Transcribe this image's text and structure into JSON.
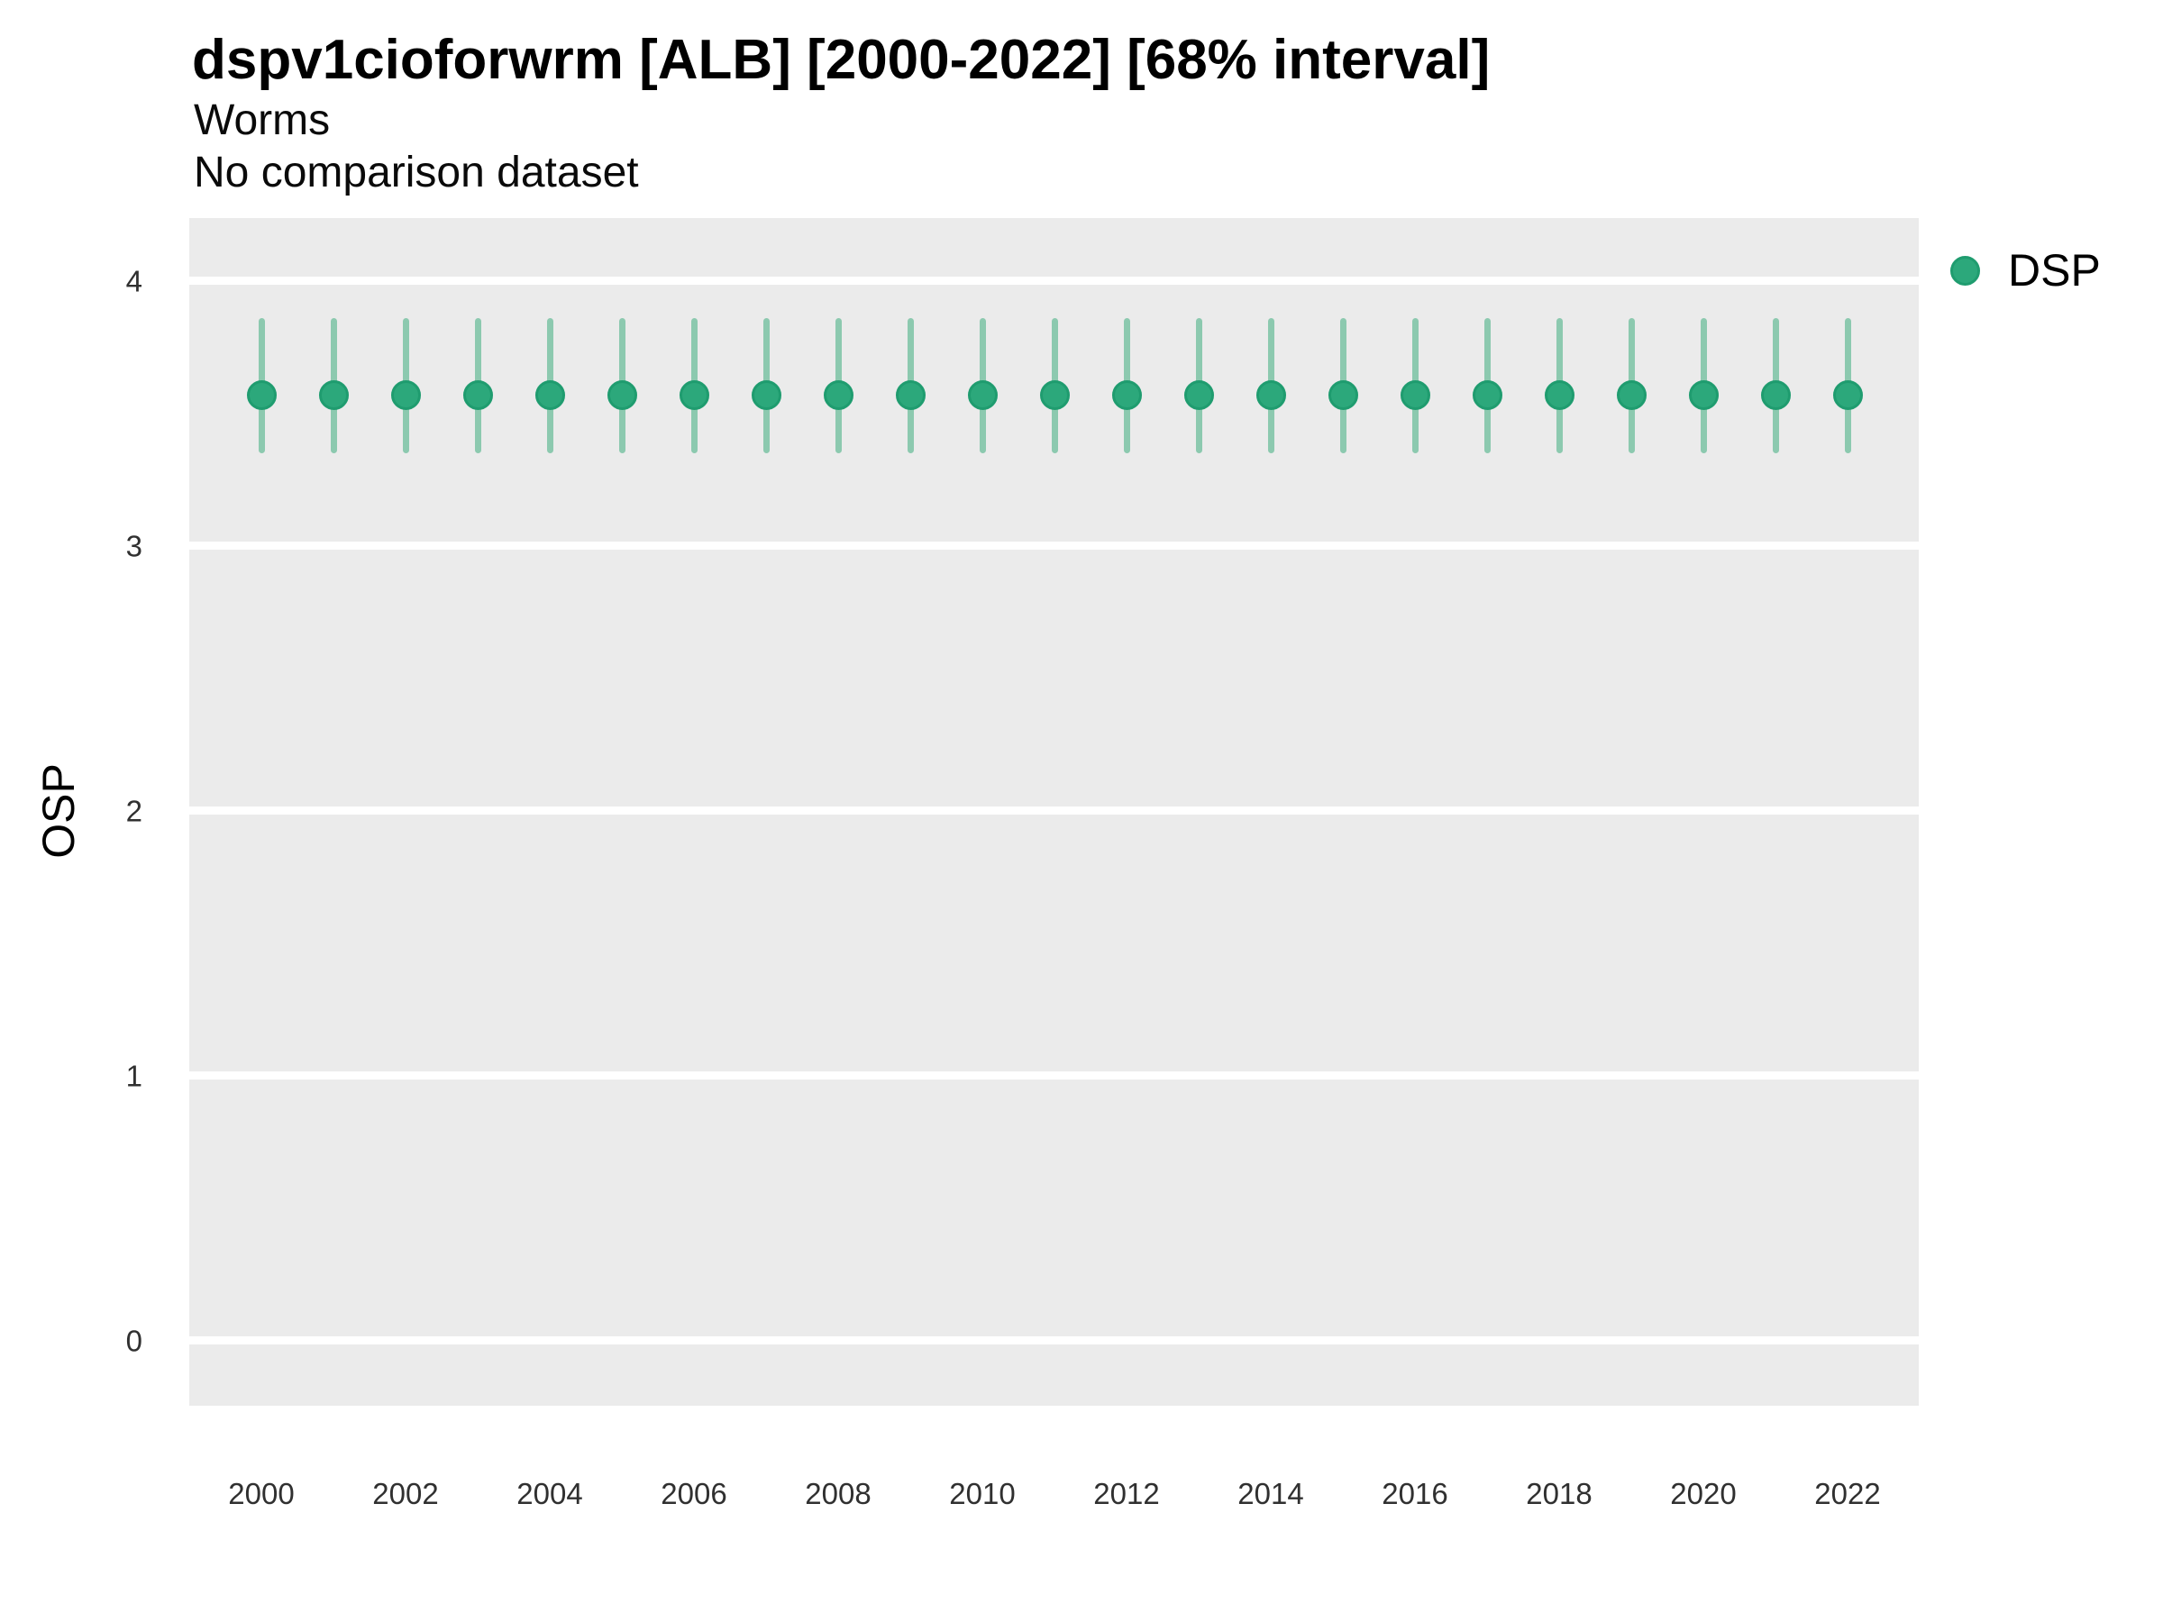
{
  "header": {
    "title": "dspv1cioforwrm [ALB] [2000-2022] [68% interval]",
    "subtitle": "Worms",
    "note": "No comparison dataset"
  },
  "y_axis": {
    "label": "OSP",
    "tick_values": [
      4,
      3,
      2,
      1,
      0
    ],
    "tick_labels": [
      "4",
      "3",
      "2",
      "1",
      "0"
    ]
  },
  "x_axis": {
    "tick_values": [
      2000,
      2002,
      2004,
      2006,
      2008,
      2010,
      2012,
      2014,
      2016,
      2018,
      2020,
      2022
    ],
    "tick_labels": [
      "2000",
      "2002",
      "2004",
      "2006",
      "2008",
      "2010",
      "2012",
      "2014",
      "2016",
      "2018",
      "2020",
      "2022"
    ]
  },
  "legend": {
    "label": "DSP"
  },
  "colors": {
    "point_fill": "#2CA87B",
    "point_stroke": "#1F9C6F",
    "error_bar": "#8CC9AF",
    "panel_background": "#EBEBEB",
    "gridline": "#FFFFFF",
    "text": "#000000",
    "tick_text": "#303030"
  },
  "chart_data": {
    "type": "scatter",
    "title": "dspv1cioforwrm [ALB] [2000-2022] [68% interval]",
    "subtitle": "Worms",
    "annotation": "No comparison dataset",
    "xlabel": "",
    "ylabel": "OSP",
    "interval_label": "68% interval",
    "grid": "horizontal-major-only",
    "legend_position": "right-top",
    "xlim": [
      1999,
      2023
    ],
    "ylim": [
      -0.25,
      4.24
    ],
    "series": [
      {
        "name": "DSP",
        "x": [
          2000,
          2001,
          2002,
          2003,
          2004,
          2005,
          2006,
          2007,
          2008,
          2009,
          2010,
          2011,
          2012,
          2013,
          2014,
          2015,
          2016,
          2017,
          2018,
          2019,
          2020,
          2021,
          2022
        ],
        "y": [
          3.57,
          3.57,
          3.57,
          3.57,
          3.57,
          3.57,
          3.57,
          3.57,
          3.57,
          3.57,
          3.57,
          3.57,
          3.57,
          3.57,
          3.57,
          3.57,
          3.57,
          3.57,
          3.57,
          3.57,
          3.57,
          3.57,
          3.57
        ],
        "y_lo": [
          3.35,
          3.35,
          3.35,
          3.35,
          3.35,
          3.35,
          3.35,
          3.35,
          3.35,
          3.35,
          3.35,
          3.35,
          3.35,
          3.35,
          3.35,
          3.35,
          3.35,
          3.35,
          3.35,
          3.35,
          3.35,
          3.35,
          3.35
        ],
        "y_hi": [
          3.86,
          3.86,
          3.86,
          3.86,
          3.86,
          3.86,
          3.86,
          3.86,
          3.86,
          3.86,
          3.86,
          3.86,
          3.86,
          3.86,
          3.86,
          3.86,
          3.86,
          3.86,
          3.86,
          3.86,
          3.86,
          3.86,
          3.86
        ]
      }
    ]
  }
}
